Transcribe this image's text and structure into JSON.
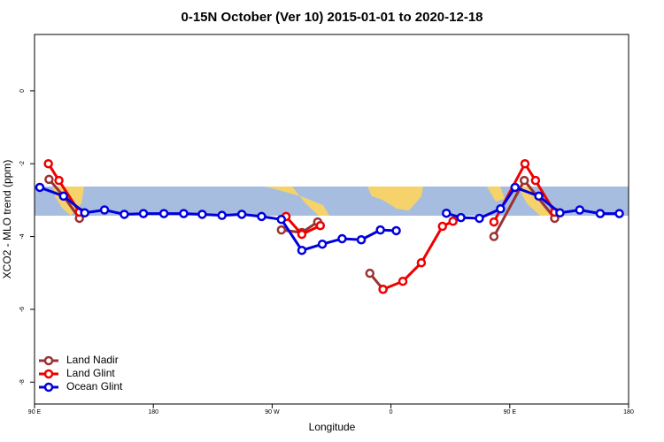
{
  "chart_data": {
    "type": "line",
    "title": "0-15N October (Ver 10)   2015-01-01 to 2020-12-18",
    "xlabel": "Longitude",
    "ylabel": "XCO2 - MLO trend (ppm)",
    "xlim": [
      90,
      540
    ],
    "ylim": [
      -8.6,
      1.55
    ],
    "xticks": [
      {
        "value": 90,
        "label": "90 E"
      },
      {
        "value": 180,
        "label": "180"
      },
      {
        "value": 270,
        "label": "90 W"
      },
      {
        "value": 360,
        "label": "0"
      },
      {
        "value": 450,
        "label": "90 E"
      },
      {
        "value": 540,
        "label": "180"
      }
    ],
    "yticks": [
      0,
      -2,
      -4,
      -6,
      -8
    ],
    "legend": "bottom-left",
    "series": [
      {
        "name": "Land Nadir",
        "color": "#993333",
        "x": [
          101,
          112,
          124,
          null,
          277,
          292.5,
          304.5,
          null,
          344,
          354,
          null,
          438,
          461,
          484
        ],
        "values": [
          -2.43,
          -2.89,
          -3.5,
          null,
          -3.82,
          -3.89,
          -3.6,
          null,
          -5.01,
          -5.45,
          null,
          -4.0,
          -2.46,
          -3.5
        ]
      },
      {
        "name": "Land Glint",
        "color": "#ee0000",
        "x": [
          100.5,
          108.5,
          124,
          null,
          280.5,
          292.5,
          306.5,
          null,
          354,
          369,
          383,
          399,
          407,
          null,
          438,
          461.5,
          469.5,
          484
        ],
        "values": [
          -2.0,
          -2.46,
          -3.33,
          null,
          -3.45,
          -3.94,
          -3.7,
          null,
          -5.45,
          -5.23,
          -4.72,
          -3.72,
          -3.58,
          null,
          -3.6,
          -2.0,
          -2.46,
          -3.33
        ]
      },
      {
        "name": "Ocean Glint",
        "color": "#0000dd",
        "x": [
          94,
          112,
          128,
          143,
          158,
          172.5,
          188,
          203,
          217,
          232,
          247,
          262,
          277,
          292.5,
          308,
          323,
          337.5,
          352,
          364,
          null,
          402,
          413,
          427,
          443,
          454,
          472,
          488,
          503,
          518.5,
          533
        ],
        "values": [
          -2.65,
          -2.89,
          -3.35,
          -3.27,
          -3.39,
          -3.37,
          -3.37,
          -3.37,
          -3.39,
          -3.42,
          -3.39,
          -3.45,
          -3.53,
          -4.38,
          -4.21,
          -4.06,
          -4.09,
          -3.82,
          -3.84,
          null,
          -3.36,
          -3.48,
          -3.5,
          -3.24,
          -2.65,
          -2.89,
          -3.35,
          -3.27,
          -3.37,
          -3.37
        ]
      }
    ]
  }
}
